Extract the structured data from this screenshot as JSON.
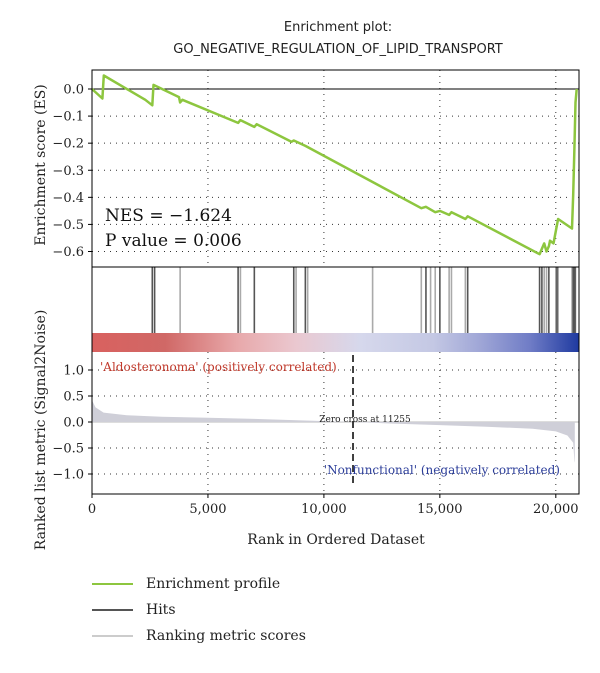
{
  "chart_data": {
    "type": "line",
    "title": "Enrichment plot:",
    "subtitle": "GO_NEGATIVE_REGULATION_OF_LIPID_TRANSPORT",
    "xlabel": "Rank in Ordered Dataset",
    "xlim": [
      0,
      21000
    ],
    "x_ticks": [
      {
        "value": 0,
        "label": "0"
      },
      {
        "value": 5000,
        "label": "5,000"
      },
      {
        "value": 10000,
        "label": "10,000"
      },
      {
        "value": 15000,
        "label": "15,000"
      },
      {
        "value": 20000,
        "label": "20,000"
      }
    ],
    "es_panel": {
      "ylabel": "Enrichment score (ES)",
      "ylim": [
        -0.65,
        0.06
      ],
      "y_ticks": [
        {
          "value": 0.0,
          "label": "0.0"
        },
        {
          "value": -0.1,
          "label": "−0.1"
        },
        {
          "value": -0.2,
          "label": "−0.2"
        },
        {
          "value": -0.3,
          "label": "−0.3"
        },
        {
          "value": -0.4,
          "label": "−0.4"
        },
        {
          "value": -0.5,
          "label": "−0.5"
        },
        {
          "value": -0.6,
          "label": "−0.6"
        }
      ],
      "series_color": "#8dc63f",
      "points": [
        [
          0,
          0.0
        ],
        [
          450,
          -0.035
        ],
        [
          510,
          0.05
        ],
        [
          2300,
          -0.04
        ],
        [
          2600,
          -0.06
        ],
        [
          2650,
          0.015
        ],
        [
          3750,
          -0.03
        ],
        [
          3800,
          -0.05
        ],
        [
          3900,
          -0.04
        ],
        [
          6300,
          -0.125
        ],
        [
          6400,
          -0.115
        ],
        [
          7000,
          -0.14
        ],
        [
          7100,
          -0.13
        ],
        [
          8600,
          -0.195
        ],
        [
          8700,
          -0.19
        ],
        [
          9200,
          -0.21
        ],
        [
          14200,
          -0.44
        ],
        [
          14400,
          -0.435
        ],
        [
          14800,
          -0.455
        ],
        [
          15000,
          -0.45
        ],
        [
          15400,
          -0.465
        ],
        [
          15500,
          -0.455
        ],
        [
          16100,
          -0.48
        ],
        [
          16200,
          -0.47
        ],
        [
          19300,
          -0.61
        ],
        [
          19400,
          -0.59
        ],
        [
          19500,
          -0.57
        ],
        [
          19600,
          -0.6
        ],
        [
          19700,
          -0.58
        ],
        [
          19750,
          -0.56
        ],
        [
          19900,
          -0.57
        ],
        [
          20100,
          -0.48
        ],
        [
          20700,
          -0.515
        ],
        [
          20750,
          -0.39
        ],
        [
          20800,
          -0.22
        ],
        [
          20850,
          -0.05
        ],
        [
          20900,
          0.0
        ]
      ],
      "nes_text": "NES = −1.624",
      "pvalue_text": "P value = 0.006"
    },
    "hits": {
      "color": "#555555",
      "light_color": "#aaaaaa",
      "dark_positions": [
        2600,
        2700,
        6300,
        7000,
        8700,
        9200,
        14400,
        15000,
        16200,
        19300,
        19400,
        19700,
        20050,
        20750,
        20780,
        20800,
        20830
      ],
      "light_positions": [
        3800,
        6400,
        8800,
        9300,
        12100,
        14200,
        14600,
        14800,
        15400,
        15500,
        16100,
        19500,
        19600,
        20000,
        20100,
        20700,
        20850
      ]
    },
    "heatmap": {
      "stops": [
        [
          0.0,
          "#d9615f"
        ],
        [
          0.15,
          "#d06866"
        ],
        [
          0.3,
          "#e8a9ab"
        ],
        [
          0.42,
          "#eac8d0"
        ],
        [
          0.55,
          "#d6d8ec"
        ],
        [
          0.7,
          "#c4c8e4"
        ],
        [
          0.8,
          "#9ea5d6"
        ],
        [
          0.9,
          "#6f7cc6"
        ],
        [
          1.0,
          "#1f3aa0"
        ]
      ]
    },
    "metric_panel": {
      "ylabel": "Ranked list metric (Signal2Noise)",
      "ylim": [
        -1.1,
        1.2
      ],
      "y_ticks": [
        {
          "value": 1.0,
          "label": "1.0"
        },
        {
          "value": 0.5,
          "label": "0.5"
        },
        {
          "value": 0.0,
          "label": "0.0"
        },
        {
          "value": -0.5,
          "label": "−0.5"
        },
        {
          "value": -1.0,
          "label": "−1.0"
        }
      ],
      "fill_color": "#cfcfd8",
      "profile": [
        [
          0,
          0.42
        ],
        [
          150,
          0.28
        ],
        [
          500,
          0.18
        ],
        [
          1500,
          0.13
        ],
        [
          3000,
          0.1
        ],
        [
          5000,
          0.08
        ],
        [
          7000,
          0.06
        ],
        [
          9000,
          0.03
        ],
        [
          11255,
          0.0
        ],
        [
          13000,
          -0.03
        ],
        [
          15000,
          -0.06
        ],
        [
          17000,
          -0.09
        ],
        [
          19000,
          -0.13
        ],
        [
          20000,
          -0.18
        ],
        [
          20500,
          -0.26
        ],
        [
          20750,
          -0.4
        ],
        [
          20800,
          -0.75
        ],
        [
          20820,
          -0.78
        ]
      ],
      "zero_cross_rank": 11255,
      "zero_cross_text": "Zero cross at 11255",
      "pos_label": "'Aldosteronoma' (positively correlated)",
      "pos_color": "#c0392b",
      "neg_label": "'Nonfunctional' (negatively correlated)",
      "neg_color": "#2c3e9a"
    },
    "legend": {
      "placement": "bottom",
      "entries": [
        {
          "label": "Enrichment profile",
          "color": "#8dc63f"
        },
        {
          "label": "Hits",
          "color": "#555555"
        },
        {
          "label": "Ranking metric scores",
          "color": "#cccccc"
        }
      ]
    }
  }
}
